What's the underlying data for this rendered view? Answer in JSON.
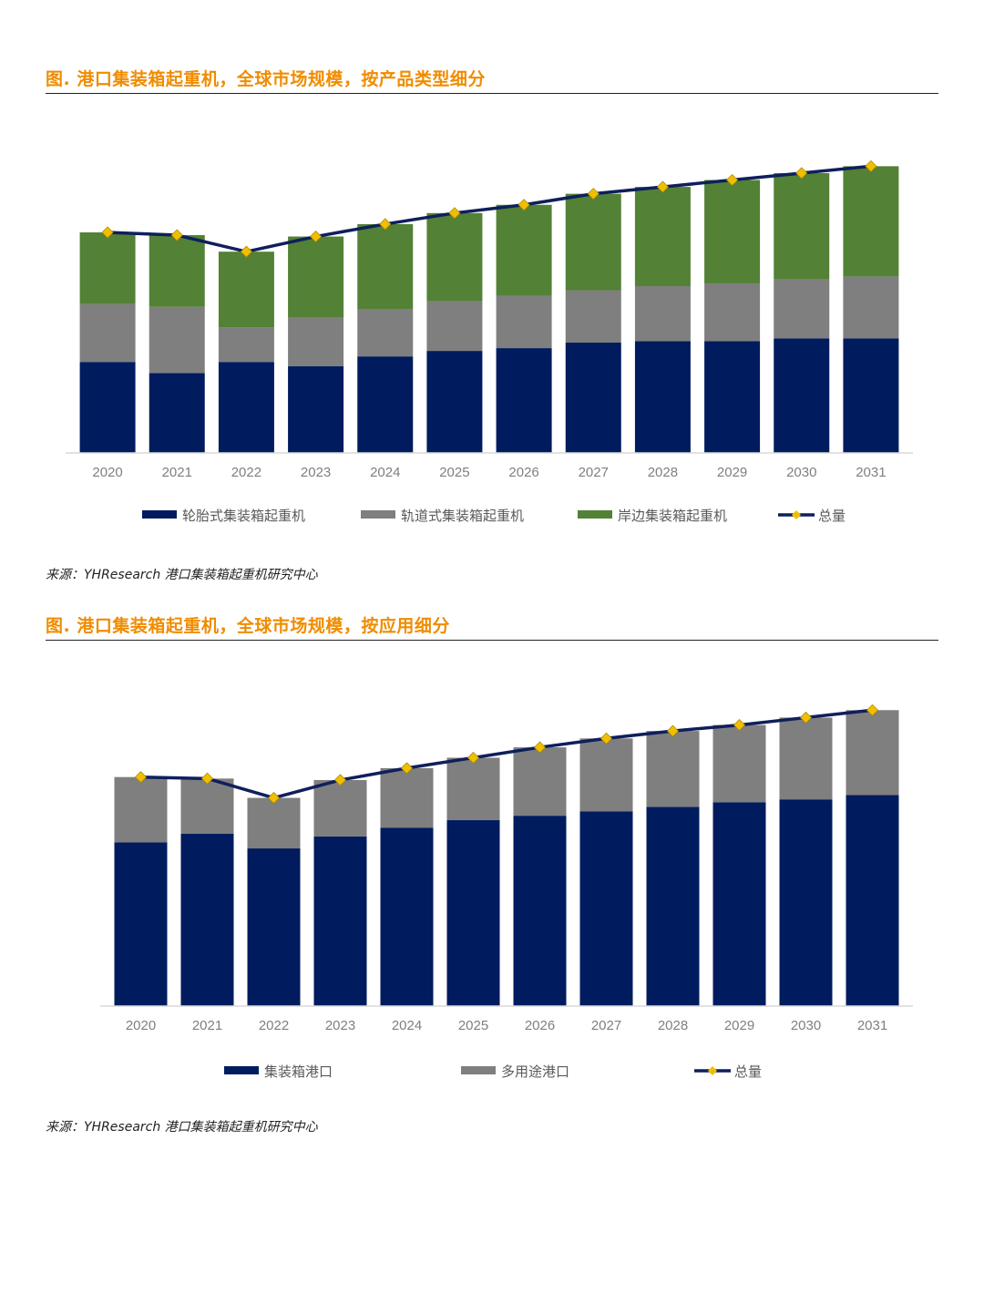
{
  "figure1": {
    "title": "图.  港口集装箱起重机，全球市场规模，按产品类型细分",
    "source": "来源：YHResearch 港口集装箱起重机研究中心",
    "colors": {
      "s1": "#001b5e",
      "s2": "#7f7f7f",
      "s3": "#538135",
      "total_line": "#0f1f5c",
      "marker": "#f0c000"
    },
    "chart_data": {
      "type": "bar",
      "stacked": true,
      "categories": [
        "2020",
        "2021",
        "2022",
        "2023",
        "2024",
        "2025",
        "2026",
        "2027",
        "2028",
        "2029",
        "2030",
        "2031"
      ],
      "series": [
        {
          "name": "轮胎式集装箱起重机",
          "values": [
            33,
            29,
            33,
            31.5,
            35,
            37,
            38,
            40,
            40.5,
            40.5,
            41.5,
            41.5
          ]
        },
        {
          "name": "轨道式集装箱起重机",
          "values": [
            21,
            24,
            12.5,
            17.5,
            17,
            18,
            19,
            19,
            20,
            21,
            21.5,
            22.5
          ]
        },
        {
          "name": "岸边集装箱起重机",
          "values": [
            26,
            26,
            27.5,
            29.5,
            31,
            32,
            33,
            35,
            36,
            37.5,
            38.5,
            40
          ]
        }
      ],
      "total": {
        "name": "总量",
        "values": [
          80,
          79,
          73,
          78.5,
          83,
          87,
          90,
          94,
          96.5,
          99,
          101.5,
          104
        ]
      },
      "ylim": [
        0,
        120
      ],
      "grid": false,
      "legend": "bottom"
    }
  },
  "figure2": {
    "title": "图.  港口集装箱起重机，全球市场规模，按应用细分",
    "source": "来源：YHResearch 港口集装箱起重机研究中心",
    "colors": {
      "s1": "#001b5e",
      "s2": "#7f7f7f",
      "total_line": "#0f1f5c",
      "marker": "#f0c000"
    },
    "chart_data": {
      "type": "bar",
      "stacked": true,
      "categories": [
        "2020",
        "2021",
        "2022",
        "2023",
        "2024",
        "2025",
        "2026",
        "2027",
        "2028",
        "2029",
        "2030",
        "2031"
      ],
      "series": [
        {
          "name": "集装箱港口",
          "values": [
            55,
            58,
            53,
            57,
            60,
            62.5,
            64,
            65.5,
            67,
            68.5,
            69.5,
            71
          ]
        },
        {
          "name": "多用途港口",
          "values": [
            22,
            18.5,
            17,
            19,
            20,
            21,
            23,
            24.5,
            25.5,
            26,
            27.5,
            28.5
          ]
        }
      ],
      "total": {
        "name": "总量",
        "values": [
          77,
          76.5,
          70,
          76,
          80,
          83.5,
          87,
          90,
          92.5,
          94.5,
          97,
          99.5
        ]
      },
      "ylim": [
        0,
        110
      ],
      "grid": false,
      "legend": "bottom"
    }
  }
}
